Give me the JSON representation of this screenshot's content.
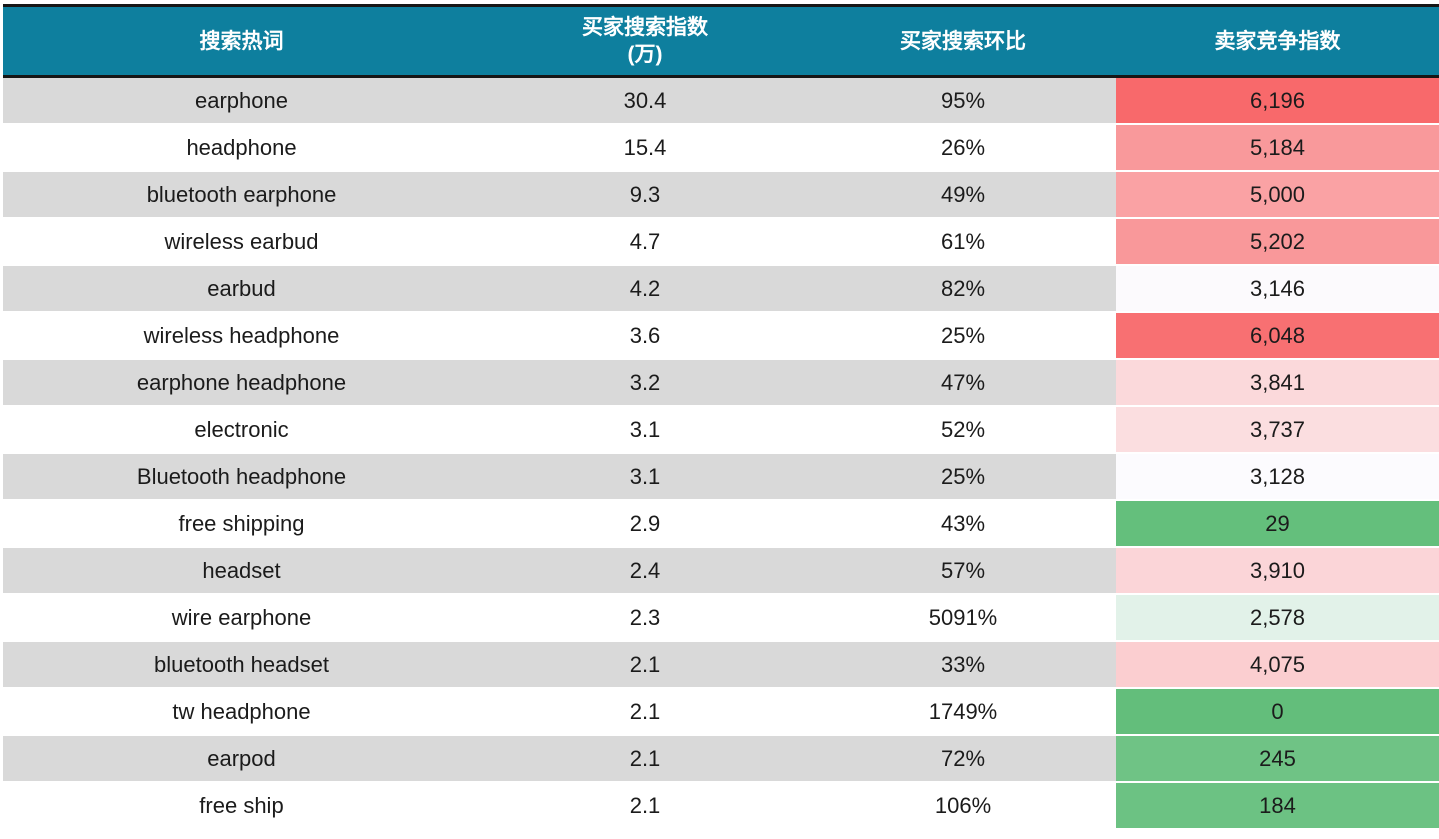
{
  "chart_data": {
    "type": "table",
    "title": "",
    "columns": [
      "搜索热词",
      "买家搜索指数(万)",
      "买家搜索环比",
      "卖家竞争指数"
    ],
    "rows": [
      [
        "earphone",
        30.4,
        "95%",
        6196
      ],
      [
        "headphone",
        15.4,
        "26%",
        5184
      ],
      [
        "bluetooth earphone",
        9.3,
        "49%",
        5000
      ],
      [
        "wireless earbud",
        4.7,
        "61%",
        5202
      ],
      [
        "earbud",
        4.2,
        "82%",
        3146
      ],
      [
        "wireless headphone",
        3.6,
        "25%",
        6048
      ],
      [
        "earphone headphone",
        3.2,
        "47%",
        3841
      ],
      [
        "electronic",
        3.1,
        "52%",
        3737
      ],
      [
        "Bluetooth headphone",
        3.1,
        "25%",
        3128
      ],
      [
        "free shipping",
        2.9,
        "43%",
        29
      ],
      [
        "headset",
        2.4,
        "57%",
        3910
      ],
      [
        "wire earphone",
        2.3,
        "5091%",
        2578
      ],
      [
        "bluetooth headset",
        2.1,
        "33%",
        4075
      ],
      [
        "tw headphone",
        2.1,
        "1749%",
        0
      ],
      [
        "earpod",
        2.1,
        "72%",
        245
      ],
      [
        "free ship",
        2.1,
        "106%",
        184
      ]
    ],
    "layout": {
      "grid": "off",
      "row_striping": true,
      "conditional_color_scale": {
        "applies_to_column": "卖家竞争指数",
        "min_value": 0,
        "mid_value": 3098,
        "max_value": 6196,
        "min_color": "#63BE7B",
        "mid_color": "#FCFCFF",
        "max_color": "#F8696B"
      }
    }
  },
  "table": {
    "columns": [
      {
        "label": "搜索热词"
      },
      {
        "label": "买家搜索指数",
        "sub": "(万)"
      },
      {
        "label": "买家搜索环比"
      },
      {
        "label": "卖家竞争指数"
      }
    ],
    "rows": [
      {
        "keyword": "earphone",
        "search_index": "30.4",
        "search_mom": "95%",
        "competition": "6,196",
        "competition_bg": "#F8696B"
      },
      {
        "keyword": "headphone",
        "search_index": "15.4",
        "search_mom": "26%",
        "competition": "5,184",
        "competition_bg": "#F9999B"
      },
      {
        "keyword": "bluetooth earphone",
        "search_index": "9.3",
        "search_mom": "49%",
        "competition": "5,000",
        "competition_bg": "#FAA2A4"
      },
      {
        "keyword": "wireless earbud",
        "search_index": "4.7",
        "search_mom": "61%",
        "competition": "5,202",
        "competition_bg": "#F9989A"
      },
      {
        "keyword": "earbud",
        "search_index": "4.2",
        "search_mom": "82%",
        "competition": "3,146",
        "competition_bg": "#FCFAFD"
      },
      {
        "keyword": "wireless headphone",
        "search_index": "3.6",
        "search_mom": "25%",
        "competition": "6,048",
        "competition_bg": "#F87072"
      },
      {
        "keyword": "earphone headphone",
        "search_index": "3.2",
        "search_mom": "47%",
        "competition": "3,841",
        "competition_bg": "#FBD9DB"
      },
      {
        "keyword": "electronic",
        "search_index": "3.1",
        "search_mom": "52%",
        "competition": "3,737",
        "competition_bg": "#FBDEE0"
      },
      {
        "keyword": "Bluetooth headphone",
        "search_index": "3.1",
        "search_mom": "25%",
        "competition": "3,128",
        "competition_bg": "#FCFBFE"
      },
      {
        "keyword": "free shipping",
        "search_index": "2.9",
        "search_mom": "43%",
        "competition": "29",
        "competition_bg": "#64BF7C"
      },
      {
        "keyword": "headset",
        "search_index": "2.4",
        "search_mom": "57%",
        "competition": "3,910",
        "competition_bg": "#FBD5D8"
      },
      {
        "keyword": "wire earphone",
        "search_index": "2.3",
        "search_mom": "5091%",
        "competition": "2,578",
        "competition_bg": "#E2F2E9"
      },
      {
        "keyword": "bluetooth headset",
        "search_index": "2.1",
        "search_mom": "33%",
        "competition": "4,075",
        "competition_bg": "#FBCED0"
      },
      {
        "keyword": "tw headphone",
        "search_index": "2.1",
        "search_mom": "1749%",
        "competition": "0",
        "competition_bg": "#63BE7B"
      },
      {
        "keyword": "earpod",
        "search_index": "2.1",
        "search_mom": "72%",
        "competition": "245",
        "competition_bg": "#6FC385"
      },
      {
        "keyword": "free ship",
        "search_index": "2.1",
        "search_mom": "106%",
        "competition": "184",
        "competition_bg": "#6CC283"
      }
    ],
    "colors": {
      "header_bg": "#0E7F9E",
      "header_text": "#FFFFFF",
      "header_border": "#161616",
      "row_stripe_bg": "#D9D9D9",
      "row_bg": "#FFFFFF",
      "body_text": "#1B1B1B"
    }
  }
}
